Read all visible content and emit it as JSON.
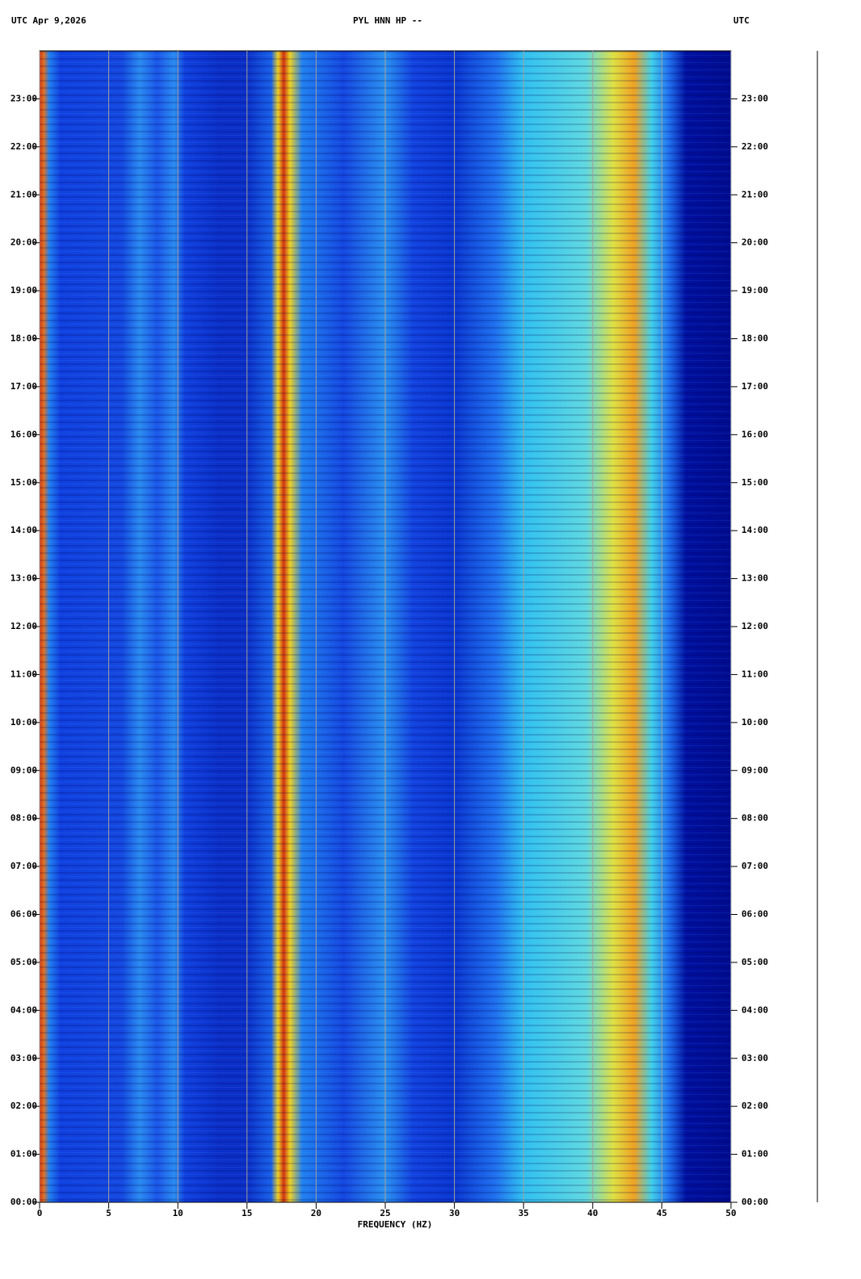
{
  "chart_data": {
    "type": "spectrogram",
    "title": "PYL HNN HP --",
    "date_label": "UTC  Apr 9,2026",
    "right_label": "UTC",
    "xlabel": "FREQUENCY (HZ)",
    "xlim": [
      0,
      50
    ],
    "xticks": [
      0,
      5,
      10,
      15,
      20,
      25,
      30,
      35,
      40,
      45,
      50
    ],
    "ylim": [
      0,
      24
    ],
    "yticks": [
      {
        "value": 0,
        "label": "00:00"
      },
      {
        "value": 1,
        "label": "01:00"
      },
      {
        "value": 2,
        "label": "02:00"
      },
      {
        "value": 3,
        "label": "03:00"
      },
      {
        "value": 4,
        "label": "04:00"
      },
      {
        "value": 5,
        "label": "05:00"
      },
      {
        "value": 6,
        "label": "06:00"
      },
      {
        "value": 7,
        "label": "07:00"
      },
      {
        "value": 8,
        "label": "08:00"
      },
      {
        "value": 9,
        "label": "09:00"
      },
      {
        "value": 10,
        "label": "10:00"
      },
      {
        "value": 11,
        "label": "11:00"
      },
      {
        "value": 12,
        "label": "12:00"
      },
      {
        "value": 13,
        "label": "13:00"
      },
      {
        "value": 14,
        "label": "14:00"
      },
      {
        "value": 15,
        "label": "15:00"
      },
      {
        "value": 16,
        "label": "16:00"
      },
      {
        "value": 17,
        "label": "17:00"
      },
      {
        "value": 18,
        "label": "18:00"
      },
      {
        "value": 19,
        "label": "19:00"
      },
      {
        "value": 20,
        "label": "20:00"
      },
      {
        "value": 21,
        "label": "21:00"
      },
      {
        "value": 22,
        "label": "22:00"
      },
      {
        "value": 23,
        "label": "23:00"
      }
    ],
    "grid": true
  }
}
